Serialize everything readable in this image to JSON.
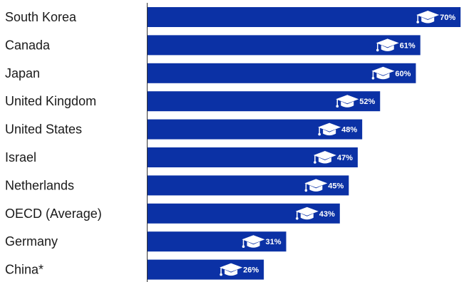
{
  "chart_data": {
    "type": "bar",
    "orientation": "horizontal",
    "categories": [
      "South Korea",
      "Canada",
      "Japan",
      "United Kingdom",
      "United States",
      "Israel",
      "Netherlands",
      "OECD (Average)",
      "Germany",
      "China*"
    ],
    "values": [
      70,
      61,
      60,
      52,
      48,
      47,
      45,
      43,
      31,
      26
    ],
    "value_labels": [
      "70%",
      "61%",
      "60%",
      "52%",
      "48%",
      "47%",
      "45%",
      "43%",
      "31%",
      "26%"
    ],
    "value_unit": "%",
    "xlim": [
      0,
      73
    ],
    "grid": false,
    "legend": "none",
    "bar_icon": "graduation-cap-icon",
    "colors": {
      "bar": "#0b31a5",
      "axis": "#333333",
      "text": "#1a1a1a",
      "label": "#ffffff"
    }
  }
}
